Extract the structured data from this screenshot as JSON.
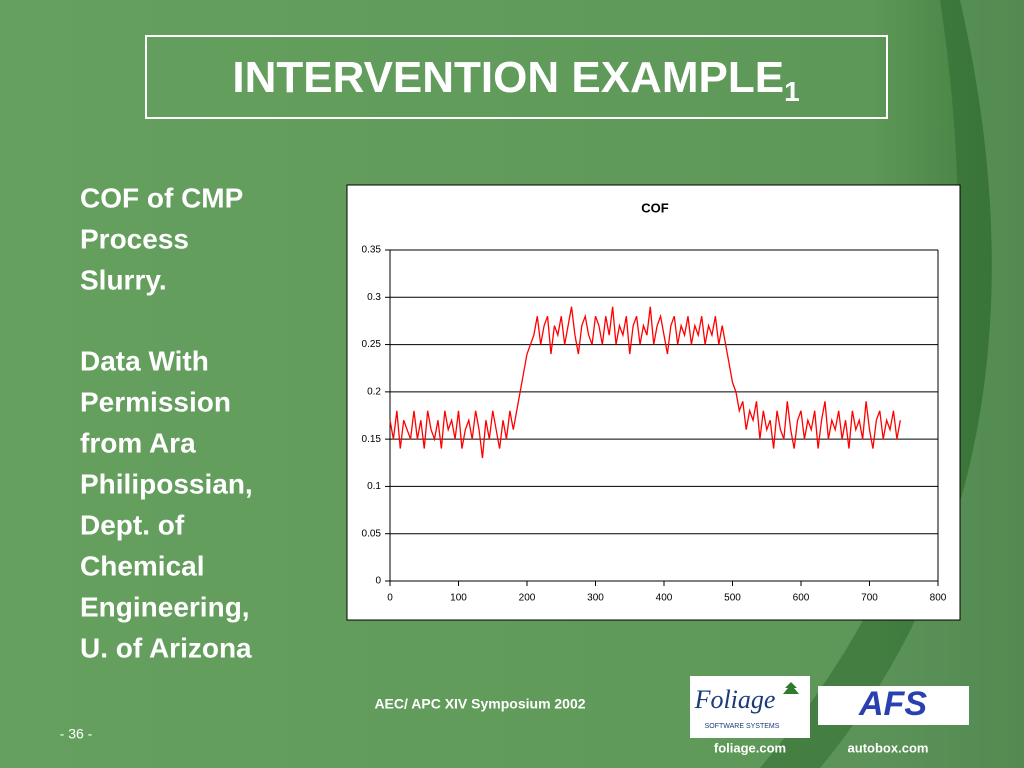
{
  "slide": {
    "title": "INTERVENTION EXAMPLE",
    "title_subscript": "1",
    "body_lines": [
      "COF of CMP",
      "Process",
      "Slurry.",
      "Data With",
      "Permission",
      "from Ara",
      "Philipossian,",
      "Dept. of",
      "Chemical",
      "Engineering,",
      "U. of Arizona"
    ],
    "footer": "AEC/ APC XIV Symposium 2002",
    "page": "- 36 -",
    "foliage_logo": "Foliage",
    "foliage_logo_sub": "SOFTWARE SYSTEMS",
    "afs_logo": "AFS",
    "link1": "foliage.com",
    "link2": "autobox.com"
  },
  "chart_data": {
    "type": "line",
    "title": "COF",
    "color": "#ff0000",
    "x": [
      0,
      5,
      10,
      15,
      20,
      25,
      30,
      35,
      40,
      45,
      50,
      55,
      60,
      65,
      70,
      75,
      80,
      85,
      90,
      95,
      100,
      105,
      110,
      115,
      120,
      125,
      130,
      135,
      140,
      145,
      150,
      155,
      160,
      165,
      170,
      175,
      180,
      185,
      190,
      195,
      200,
      205,
      210,
      215,
      220,
      225,
      230,
      235,
      240,
      245,
      250,
      255,
      260,
      265,
      270,
      275,
      280,
      285,
      290,
      295,
      300,
      305,
      310,
      315,
      320,
      325,
      330,
      335,
      340,
      345,
      350,
      355,
      360,
      365,
      370,
      375,
      380,
      385,
      390,
      395,
      400,
      405,
      410,
      415,
      420,
      425,
      430,
      435,
      440,
      445,
      450,
      455,
      460,
      465,
      470,
      475,
      480,
      485,
      490,
      495,
      500,
      505,
      510,
      515,
      520,
      525,
      530,
      535,
      540,
      545,
      550,
      555,
      560,
      565,
      570,
      575,
      580,
      585,
      590,
      595,
      600,
      605,
      610,
      615,
      620,
      625,
      630,
      635,
      640,
      645,
      650,
      655,
      660,
      665,
      670,
      675,
      680,
      685,
      690,
      695,
      700,
      705,
      710,
      715,
      720,
      725,
      730,
      735,
      740,
      745
    ],
    "values": [
      0.17,
      0.15,
      0.18,
      0.14,
      0.17,
      0.16,
      0.15,
      0.18,
      0.15,
      0.17,
      0.14,
      0.18,
      0.16,
      0.15,
      0.17,
      0.14,
      0.18,
      0.16,
      0.17,
      0.15,
      0.18,
      0.14,
      0.16,
      0.17,
      0.15,
      0.18,
      0.16,
      0.13,
      0.17,
      0.15,
      0.18,
      0.16,
      0.14,
      0.17,
      0.15,
      0.18,
      0.16,
      0.18,
      0.2,
      0.22,
      0.24,
      0.25,
      0.26,
      0.28,
      0.25,
      0.27,
      0.28,
      0.24,
      0.27,
      0.26,
      0.28,
      0.25,
      0.27,
      0.29,
      0.26,
      0.24,
      0.27,
      0.28,
      0.26,
      0.25,
      0.28,
      0.27,
      0.25,
      0.28,
      0.26,
      0.29,
      0.25,
      0.27,
      0.26,
      0.28,
      0.24,
      0.27,
      0.28,
      0.25,
      0.27,
      0.26,
      0.29,
      0.25,
      0.27,
      0.28,
      0.26,
      0.24,
      0.27,
      0.28,
      0.25,
      0.27,
      0.26,
      0.28,
      0.25,
      0.27,
      0.26,
      0.28,
      0.25,
      0.27,
      0.26,
      0.28,
      0.25,
      0.27,
      0.25,
      0.23,
      0.21,
      0.2,
      0.18,
      0.19,
      0.16,
      0.18,
      0.17,
      0.19,
      0.15,
      0.18,
      0.16,
      0.17,
      0.14,
      0.18,
      0.16,
      0.15,
      0.19,
      0.16,
      0.14,
      0.17,
      0.18,
      0.15,
      0.17,
      0.16,
      0.18,
      0.14,
      0.17,
      0.19,
      0.15,
      0.17,
      0.16,
      0.18,
      0.15,
      0.17,
      0.14,
      0.18,
      0.16,
      0.17,
      0.15,
      0.19,
      0.16,
      0.14,
      0.17,
      0.18,
      0.15,
      0.17,
      0.16,
      0.18,
      0.15,
      0.17
    ],
    "xlim": [
      0,
      800
    ],
    "xticks": [
      0,
      100,
      200,
      300,
      400,
      500,
      600,
      700,
      800
    ],
    "ylim": [
      0,
      0.35
    ],
    "yticks": [
      0,
      0.05,
      0.1,
      0.15,
      0.2,
      0.25,
      0.3,
      0.35
    ],
    "grid": true
  }
}
